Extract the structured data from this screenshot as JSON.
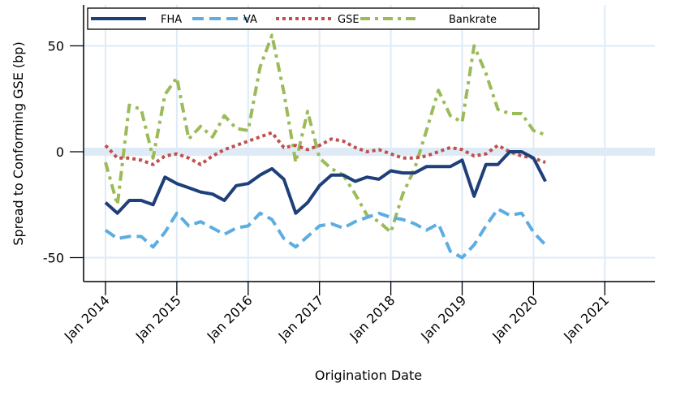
{
  "chart_data": {
    "type": "line",
    "title": "",
    "xlabel": "Origination Date",
    "ylabel": "Spread to Conforming GSE (bp)",
    "ylim": [
      -60,
      65
    ],
    "yticks": [
      50,
      0,
      -50
    ],
    "ytick_labels": [
      "50",
      "0",
      "-50"
    ],
    "xticks": [
      "Jan 2014",
      "Jan 2015",
      "Jan 2016",
      "Jan 2017",
      "Jan 2018",
      "Jan 2019",
      "Jan 2020",
      "Jan 2021"
    ],
    "x_start": "Jan 2014",
    "x_step": "2 months",
    "grid": true,
    "legend": "top",
    "series": [
      {
        "name": "FHA",
        "color": "#1f3f7a",
        "style": "solid",
        "values": [
          -24,
          -29,
          -23,
          -23,
          -25,
          -12,
          -15,
          -17,
          -19,
          -20,
          -23,
          -16,
          -15,
          -11,
          -8,
          -13,
          -29,
          -24,
          -16,
          -11,
          -11,
          -14,
          -12,
          -13,
          -9,
          -10,
          -10,
          -7,
          -7,
          -7,
          -4,
          -21,
          -6,
          -6,
          0,
          0,
          -3,
          -14
        ]
      },
      {
        "name": "VA",
        "color": "#5dade2",
        "style": "dashed",
        "values": [
          -37,
          -41,
          -40,
          -40,
          -45,
          -38,
          -29,
          -35,
          -33,
          -36,
          -39,
          -36,
          -35,
          -29,
          -32,
          -41,
          -45,
          -40,
          -35,
          -34,
          -36,
          -33,
          -31,
          -29,
          -31,
          -32,
          -34,
          -37,
          -34,
          -47,
          -50,
          -44,
          -35,
          -27,
          -30,
          -29,
          -38,
          -44
        ]
      },
      {
        "name": "GSE",
        "color": "#c0504d",
        "style": "dotted",
        "values": [
          3,
          -3,
          -3,
          -4,
          -6,
          -2,
          -1,
          -3,
          -6,
          -2,
          1,
          3,
          5,
          7,
          9,
          2,
          3,
          1,
          3,
          6,
          5,
          2,
          0,
          1,
          -1,
          -3,
          -3,
          -2,
          0,
          2,
          1,
          -2,
          -1,
          3,
          0,
          -2,
          -3,
          -5
        ]
      },
      {
        "name": "Bankrate",
        "color": "#9bbb59",
        "style": "dash-dot",
        "values": [
          -5,
          -25,
          22,
          20,
          -3,
          27,
          35,
          6,
          12,
          7,
          17,
          11,
          10,
          40,
          55,
          28,
          -5,
          19,
          -3,
          -8,
          -11,
          -20,
          -30,
          -33,
          -38,
          -20,
          -8,
          10,
          29,
          17,
          14,
          50,
          37,
          20,
          18,
          18,
          10,
          8
        ]
      }
    ]
  }
}
